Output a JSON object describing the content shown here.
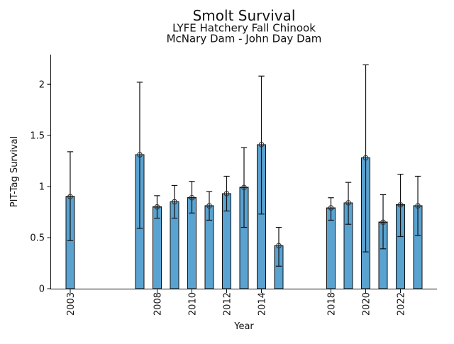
{
  "chart_data": {
    "type": "bar",
    "title": "Smolt Survival",
    "subtitle1": "LYFE Hatchery Fall Chinook",
    "subtitle2": "McNary Dam - John Day Dam",
    "xlabel": "Year",
    "ylabel": "PIT-Tag Survival",
    "xlim": [
      2001.9,
      2024.1
    ],
    "ylim": [
      0,
      2.29
    ],
    "grid": false,
    "legend": "none",
    "bar_color": "#5AA2D0",
    "bar_edge_color": "#111111",
    "errorbar_color": "#111111",
    "marker": "open-circle",
    "yticks": [
      {
        "v": 0,
        "label": "0"
      },
      {
        "v": 0.5,
        "label": "0.5"
      },
      {
        "v": 1,
        "label": "1"
      },
      {
        "v": 1.5,
        "label": "1.5"
      },
      {
        "v": 2,
        "label": "2"
      }
    ],
    "xticks": [
      {
        "year": 2003,
        "label": "2003"
      },
      {
        "year": 2008,
        "label": "2008"
      },
      {
        "year": 2010,
        "label": "2010"
      },
      {
        "year": 2012,
        "label": "2012"
      },
      {
        "year": 2014,
        "label": "2014"
      },
      {
        "year": 2018,
        "label": "2018"
      },
      {
        "year": 2020,
        "label": "2020"
      },
      {
        "year": 2022,
        "label": "2022"
      }
    ],
    "series": [
      {
        "name": "PIT-Tag Survival",
        "points": [
          {
            "year": 2003,
            "value": 0.9,
            "ci_low": 0.47,
            "ci_high": 1.34
          },
          {
            "year": 2007,
            "value": 1.31,
            "ci_low": 0.59,
            "ci_high": 2.02
          },
          {
            "year": 2008,
            "value": 0.8,
            "ci_low": 0.69,
            "ci_high": 0.91
          },
          {
            "year": 2009,
            "value": 0.85,
            "ci_low": 0.69,
            "ci_high": 1.01
          },
          {
            "year": 2010,
            "value": 0.89,
            "ci_low": 0.74,
            "ci_high": 1.05
          },
          {
            "year": 2011,
            "value": 0.81,
            "ci_low": 0.67,
            "ci_high": 0.95
          },
          {
            "year": 2012,
            "value": 0.93,
            "ci_low": 0.76,
            "ci_high": 1.1
          },
          {
            "year": 2013,
            "value": 0.99,
            "ci_low": 0.6,
            "ci_high": 1.38
          },
          {
            "year": 2014,
            "value": 1.41,
            "ci_low": 0.73,
            "ci_high": 2.08
          },
          {
            "year": 2015,
            "value": 0.42,
            "ci_low": 0.22,
            "ci_high": 0.6
          },
          {
            "year": 2018,
            "value": 0.79,
            "ci_low": 0.67,
            "ci_high": 0.89
          },
          {
            "year": 2019,
            "value": 0.84,
            "ci_low": 0.63,
            "ci_high": 1.04
          },
          {
            "year": 2020,
            "value": 1.28,
            "ci_low": 0.36,
            "ci_high": 2.19
          },
          {
            "year": 2021,
            "value": 0.65,
            "ci_low": 0.39,
            "ci_high": 0.92
          },
          {
            "year": 2022,
            "value": 0.82,
            "ci_low": 0.51,
            "ci_high": 1.12
          },
          {
            "year": 2023,
            "value": 0.81,
            "ci_low": 0.52,
            "ci_high": 1.1
          }
        ]
      }
    ]
  }
}
